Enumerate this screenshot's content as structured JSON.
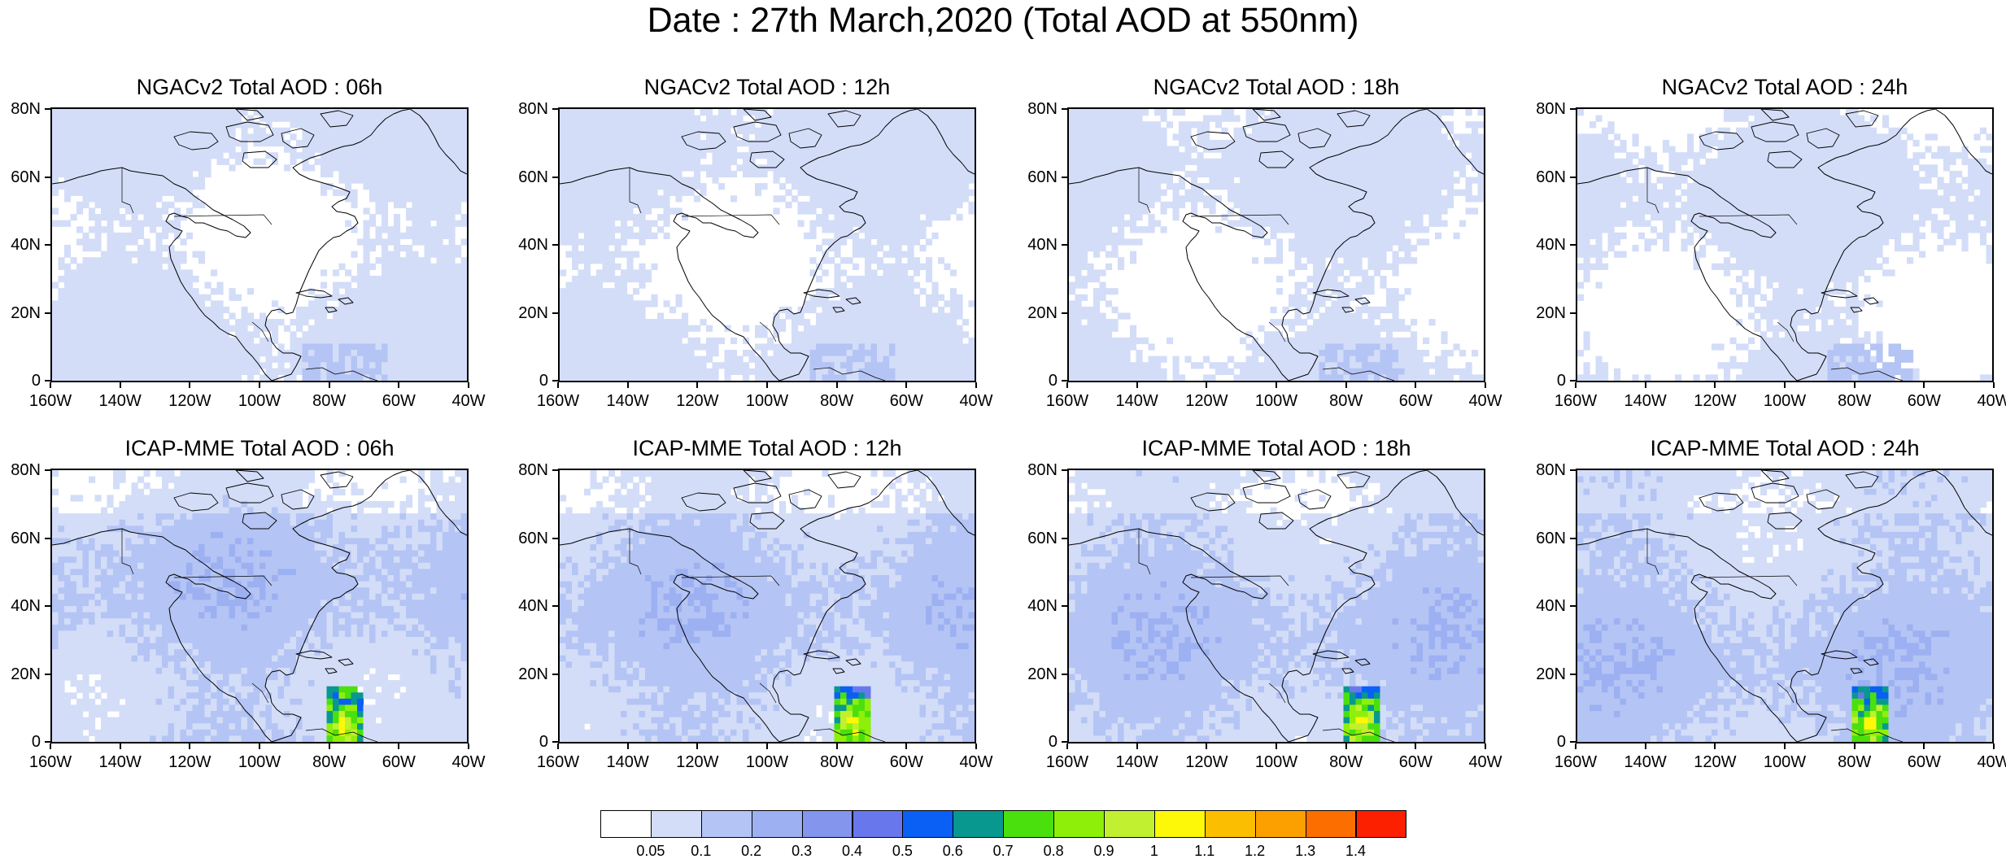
{
  "title": "Date : 27th March,2020 (Total AOD at 550nm)",
  "lat_labels": [
    "80N",
    "60N",
    "40N",
    "20N",
    "0"
  ],
  "lon_labels": [
    "160W",
    "140W",
    "120W",
    "100W",
    "80W",
    "60W",
    "40W"
  ],
  "panels": [
    {
      "title": "NGACv2 Total AOD : 06h",
      "model": "NGACv2",
      "hour": "06h"
    },
    {
      "title": "NGACv2 Total AOD : 12h",
      "model": "NGACv2",
      "hour": "12h"
    },
    {
      "title": "NGACv2 Total AOD : 18h",
      "model": "NGACv2",
      "hour": "18h"
    },
    {
      "title": "NGACv2 Total AOD : 24h",
      "model": "NGACv2",
      "hour": "24h"
    },
    {
      "title": "ICAP-MME Total AOD : 06h",
      "model": "ICAP-MME",
      "hour": "06h"
    },
    {
      "title": "ICAP-MME Total AOD : 12h",
      "model": "ICAP-MME",
      "hour": "12h"
    },
    {
      "title": "ICAP-MME Total AOD : 18h",
      "model": "ICAP-MME",
      "hour": "18h"
    },
    {
      "title": "ICAP-MME Total AOD : 24h",
      "model": "ICAP-MME",
      "hour": "24h"
    }
  ],
  "colorbar": {
    "labels": [
      "0.05",
      "0.1",
      "0.2",
      "0.3",
      "0.4",
      "0.5",
      "0.6",
      "0.7",
      "0.8",
      "0.9",
      "1",
      "1.1",
      "1.2",
      "1.3",
      "1.4"
    ],
    "colors": [
      "#ffffff",
      "#d3ddf8",
      "#b4c4f4",
      "#9cb0f2",
      "#8495ee",
      "#6878ec",
      "#0a5ff4",
      "#089890",
      "#4ae00e",
      "#8ef008",
      "#c0f030",
      "#fcf808",
      "#fcbe00",
      "#fca000",
      "#fc6e00",
      "#fc2000"
    ]
  },
  "colors": {
    "map_background": "#ffffff",
    "coastline": "#000000"
  }
}
